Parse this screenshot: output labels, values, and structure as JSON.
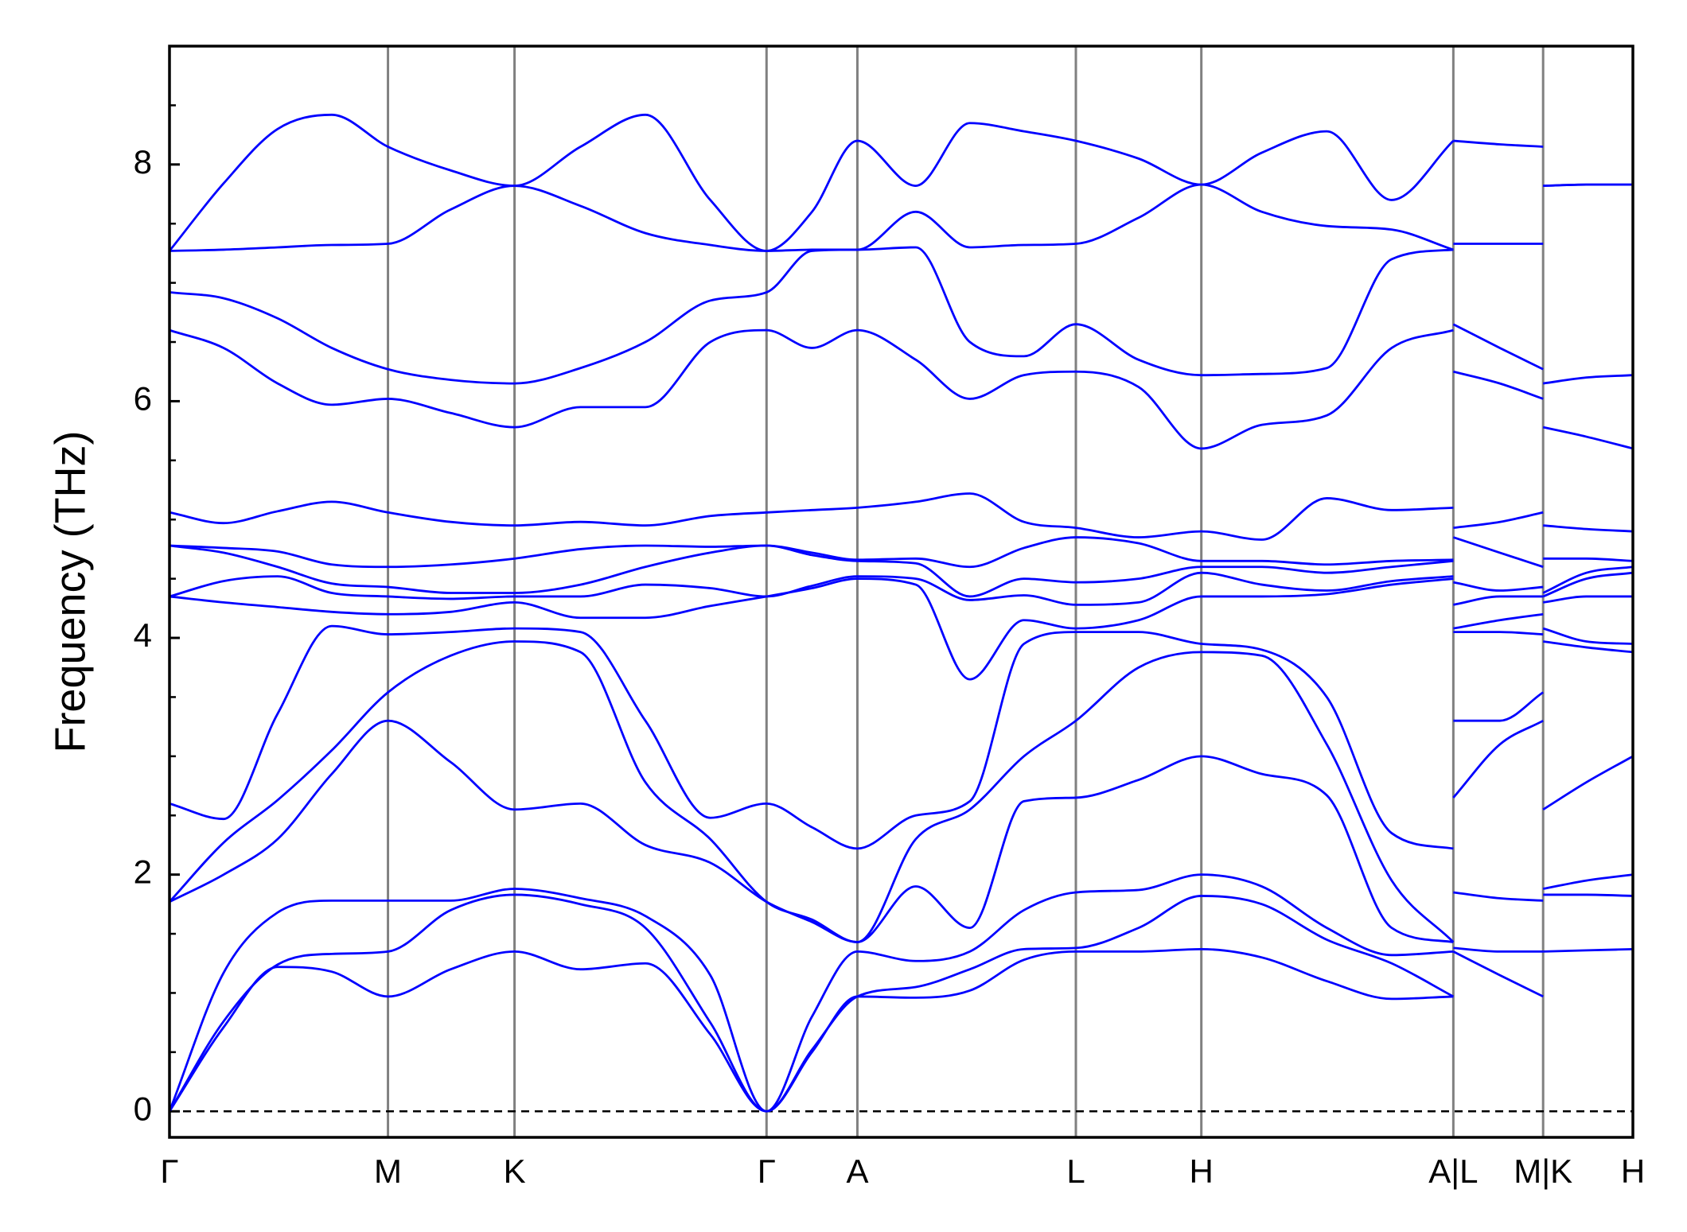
{
  "chart_data": {
    "type": "line",
    "ylabel": "Frequency (THz)",
    "color": "#0000ff",
    "xlim": [
      0,
      13.53
    ],
    "xticks": [
      {
        "value": 0,
        "label": "Γ"
      },
      {
        "value": 2.02,
        "label": "M"
      },
      {
        "value": 3.19,
        "label": "K"
      },
      {
        "value": 5.52,
        "label": "Γ"
      },
      {
        "value": 6.36,
        "label": "A"
      },
      {
        "value": 8.38,
        "label": "L"
      },
      {
        "value": 9.54,
        "label": "H"
      },
      {
        "value": 11.87,
        "label": "A|L"
      },
      {
        "value": 12.7,
        "label": "M|K"
      },
      {
        "value": 13.53,
        "label": "H"
      }
    ],
    "ylim": [
      -0.22,
      9.0
    ],
    "yticks": [
      0,
      2,
      4,
      6,
      8
    ],
    "yminorticks": [
      0.5,
      1,
      1.5,
      2.5,
      3,
      3.5,
      4.5,
      5,
      5.5,
      6.5,
      7,
      7.5,
      8.5
    ],
    "hline": 0,
    "x": [
      0,
      0.5,
      1.0,
      1.5,
      2.02,
      2.6,
      3.19,
      3.8,
      4.4,
      5.0,
      5.52,
      5.94,
      6.36,
      6.9,
      7.4,
      7.9,
      8.38,
      8.96,
      9.54,
      10.1,
      10.7,
      11.3,
      11.87,
      11.87,
      11.87,
      12.3,
      12.7,
      12.7,
      12.7,
      13.1,
      13.53
    ],
    "series": [
      {
        "values": [
          0,
          0.71,
          1.22,
          1.18,
          0.97,
          1.2,
          1.35,
          1.2,
          1.25,
          0.65,
          0,
          0.5,
          0.97,
          0.96,
          1.02,
          1.28,
          1.35,
          1.35,
          1.37,
          1.3,
          1.1,
          0.95,
          0.97,
          null,
          1.35,
          1.15,
          0.97,
          null,
          1.35,
          1.36,
          1.37
        ]
      },
      {
        "values": [
          0,
          0.76,
          1.24,
          1.33,
          1.35,
          1.7,
          1.83,
          1.75,
          1.55,
          0.75,
          0,
          0.52,
          0.97,
          1.05,
          1.2,
          1.37,
          1.38,
          1.55,
          1.82,
          1.75,
          1.45,
          1.25,
          0.97,
          null,
          1.38,
          1.35,
          1.35,
          null,
          1.83,
          1.83,
          1.82
        ]
      },
      {
        "values": [
          0,
          1.17,
          1.68,
          1.78,
          1.78,
          1.78,
          1.88,
          1.8,
          1.65,
          1.15,
          0,
          0.8,
          1.35,
          1.27,
          1.35,
          1.7,
          1.85,
          1.87,
          2.0,
          1.9,
          1.55,
          1.32,
          1.35,
          null,
          1.85,
          1.8,
          1.78,
          null,
          1.88,
          1.95,
          2.0
        ]
      },
      {
        "values": [
          1.77,
          2.0,
          2.3,
          2.85,
          3.3,
          2.95,
          2.55,
          2.6,
          2.25,
          2.1,
          1.77,
          1.6,
          1.43,
          1.9,
          1.55,
          2.62,
          2.65,
          2.8,
          3.0,
          2.85,
          2.67,
          1.55,
          1.43,
          null,
          2.65,
          3.1,
          3.3,
          null,
          2.55,
          2.78,
          3.0
        ]
      },
      {
        "values": [
          1.77,
          2.27,
          2.63,
          3.05,
          3.54,
          3.85,
          3.97,
          3.88,
          2.78,
          2.3,
          1.77,
          1.62,
          1.43,
          2.3,
          2.55,
          3.0,
          3.3,
          3.75,
          3.88,
          3.85,
          3.1,
          1.95,
          1.43,
          null,
          3.3,
          3.3,
          3.54,
          null,
          3.97,
          3.92,
          3.88
        ]
      },
      {
        "values": [
          2.6,
          2.47,
          3.36,
          4.1,
          4.03,
          4.05,
          4.08,
          4.05,
          3.3,
          2.48,
          2.6,
          2.4,
          2.22,
          2.5,
          2.62,
          3.95,
          4.05,
          4.05,
          3.95,
          3.9,
          3.5,
          2.35,
          2.22,
          null,
          4.05,
          4.05,
          4.03,
          null,
          4.08,
          3.97,
          3.95
        ]
      },
      {
        "values": [
          4.35,
          4.3,
          4.26,
          4.22,
          4.2,
          4.22,
          4.3,
          4.17,
          4.17,
          4.27,
          4.35,
          4.42,
          4.5,
          4.45,
          3.65,
          4.15,
          4.08,
          4.15,
          4.35,
          4.35,
          4.37,
          4.45,
          4.5,
          null,
          4.08,
          4.15,
          4.2,
          null,
          4.3,
          4.35,
          4.35
        ]
      },
      {
        "values": [
          4.35,
          4.48,
          4.52,
          4.38,
          4.35,
          4.33,
          4.35,
          4.35,
          4.45,
          4.42,
          4.35,
          4.44,
          4.52,
          4.5,
          4.32,
          4.36,
          4.28,
          4.3,
          4.55,
          4.45,
          4.4,
          4.48,
          4.52,
          null,
          4.28,
          4.35,
          4.35,
          null,
          4.35,
          4.5,
          4.55
        ]
      },
      {
        "values": [
          4.78,
          4.72,
          4.6,
          4.46,
          4.43,
          4.38,
          4.38,
          4.45,
          4.6,
          4.72,
          4.78,
          4.7,
          4.65,
          4.63,
          4.35,
          4.5,
          4.47,
          4.5,
          4.6,
          4.6,
          4.55,
          4.6,
          4.65,
          null,
          4.47,
          4.4,
          4.43,
          null,
          4.38,
          4.55,
          4.6
        ]
      },
      {
        "values": [
          4.78,
          4.76,
          4.73,
          4.62,
          4.6,
          4.62,
          4.67,
          4.75,
          4.78,
          4.77,
          4.78,
          4.72,
          4.66,
          4.67,
          4.6,
          4.76,
          4.85,
          4.8,
          4.65,
          4.65,
          4.62,
          4.65,
          4.66,
          null,
          4.85,
          4.72,
          4.6,
          null,
          4.67,
          4.67,
          4.65
        ]
      },
      {
        "values": [
          5.06,
          4.97,
          5.07,
          5.15,
          5.06,
          4.98,
          4.95,
          4.98,
          4.95,
          5.03,
          5.06,
          5.08,
          5.1,
          5.15,
          5.22,
          4.98,
          4.93,
          4.85,
          4.9,
          4.83,
          5.18,
          5.08,
          5.1,
          null,
          4.93,
          4.98,
          5.06,
          null,
          4.95,
          4.92,
          4.9
        ]
      },
      {
        "values": [
          6.6,
          6.45,
          6.15,
          5.97,
          6.02,
          5.9,
          5.78,
          5.95,
          5.95,
          6.5,
          6.6,
          6.45,
          6.6,
          6.35,
          6.02,
          6.22,
          6.25,
          6.12,
          5.6,
          5.8,
          5.88,
          6.45,
          6.6,
          null,
          6.25,
          6.15,
          6.02,
          null,
          5.78,
          5.7,
          5.6
        ]
      },
      {
        "values": [
          6.92,
          6.87,
          6.7,
          6.45,
          6.27,
          6.18,
          6.15,
          6.28,
          6.5,
          6.85,
          6.92,
          7.27,
          7.28,
          7.3,
          6.5,
          6.38,
          6.65,
          6.35,
          6.22,
          6.23,
          6.28,
          7.2,
          7.28,
          null,
          6.65,
          6.45,
          6.27,
          null,
          6.15,
          6.2,
          6.22
        ]
      },
      {
        "values": [
          7.27,
          7.28,
          7.3,
          7.32,
          7.33,
          7.62,
          7.82,
          7.65,
          7.42,
          7.32,
          7.27,
          7.28,
          7.28,
          7.6,
          7.3,
          7.32,
          7.33,
          7.55,
          7.83,
          7.6,
          7.48,
          7.45,
          7.28,
          null,
          7.33,
          7.33,
          7.33,
          null,
          7.82,
          7.83,
          7.83
        ]
      },
      {
        "values": [
          7.27,
          7.84,
          8.3,
          8.42,
          8.15,
          7.95,
          7.82,
          8.15,
          8.42,
          7.7,
          7.27,
          7.6,
          8.2,
          7.82,
          8.35,
          8.28,
          8.2,
          8.05,
          7.83,
          8.1,
          8.28,
          7.7,
          8.2,
          null,
          8.2,
          8.17,
          8.15,
          null,
          7.82,
          7.83,
          7.83
        ]
      }
    ]
  }
}
